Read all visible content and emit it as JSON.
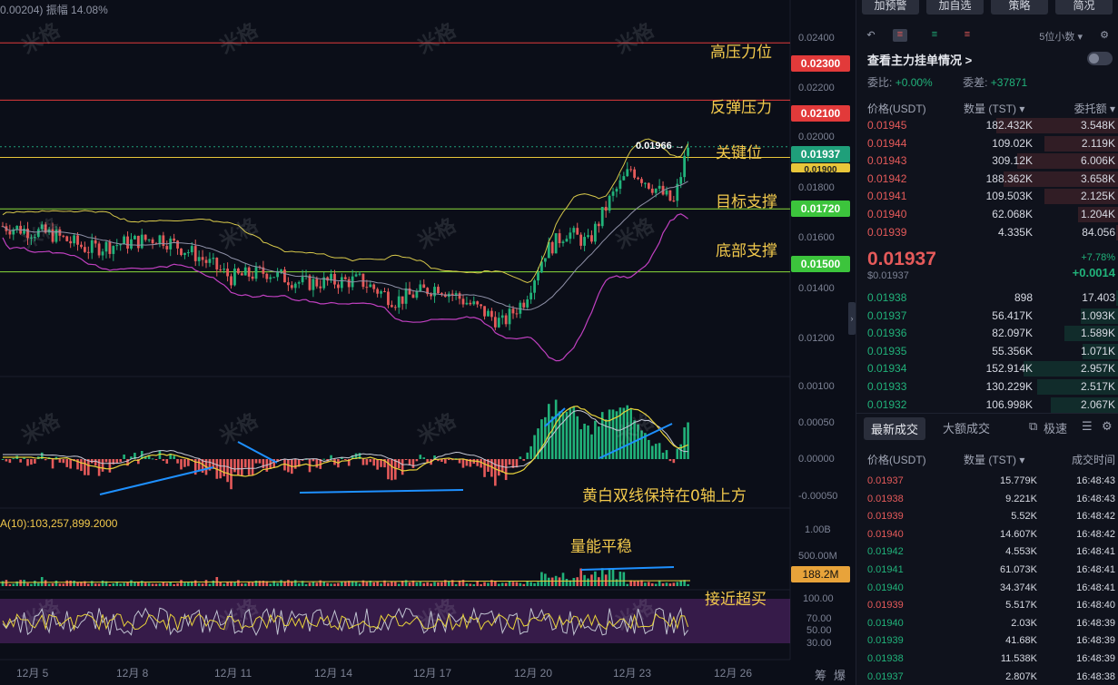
{
  "chart": {
    "top_info_price": "0.00204)",
    "top_info_amplitude": "振幅 14.08%",
    "annotations": {
      "high_pressure": "高压力位",
      "rebound_pressure": "反弹压力",
      "key_level": "关键位",
      "target_support": "目标支撑",
      "bottom_support": "底部支撑",
      "macd_note": "黄白双线保持在0轴上方",
      "volume_note": "量能平稳",
      "rsi_note": "接近超买"
    },
    "price_tags": {
      "p0230": "0.02300",
      "p0210": "0.02100",
      "p01937": "0.01937",
      "p01900": "0.01900",
      "p0172": "0.01720",
      "p0150": "0.01500"
    },
    "last_price_label": "0.01966 →",
    "price_axis": [
      "0.02400",
      "0.02200",
      "0.02000",
      "0.01800",
      "0.01600",
      "0.01400",
      "0.01200"
    ],
    "macd_axis": [
      "0.00100",
      "0.00050",
      "0.00000",
      "-0.00050"
    ],
    "volume_axis": [
      "1.00B",
      "500.00M"
    ],
    "volume_tag": "188.2M",
    "ma_label": "A(10):103,257,899.2000",
    "rsi_axis": [
      "100.00",
      "70.00",
      "50.00",
      "30.00"
    ],
    "dates": [
      "12月 5",
      "12月 8",
      "12月 11",
      "12月 14",
      "12月 17",
      "12月 20",
      "12月 23",
      "12月 26"
    ],
    "corner_labels": [
      "筹",
      "爆"
    ],
    "watermark": "米格",
    "colors": {
      "up": "#21b27a",
      "down": "#e55a5a",
      "annotation": "#f2c94c",
      "boll_mid": "#8f91a8",
      "boll_upper": "#d7c84a",
      "boll_lower": "#c040c0"
    }
  },
  "chart_data": {
    "type": "candlestick",
    "x_start": "12月 4",
    "x_end": "12月 24",
    "price_range": [
      0.0115,
      0.0245
    ],
    "resistance_levels": [
      0.023,
      0.021
    ],
    "key_level": 0.019,
    "support_levels": [
      0.0172,
      0.015
    ],
    "last_price": 0.01937,
    "recent_high": 0.01966
  },
  "orderbook": {
    "buttons": [
      "加预警",
      "加自选",
      "策略",
      "简况"
    ],
    "decimals": "5位小数",
    "depth_toggle": "查看主力挂单情况 >",
    "ratio_label": "委比:",
    "ratio_value": "+0.00%",
    "diff_label": "委差:",
    "diff_value": "+37871",
    "headers": [
      "价格(USDT)",
      "数量 (TST) ▾",
      "委托额 ▾"
    ],
    "asks": [
      {
        "p": "0.01945",
        "q": "182.432K",
        "t": "3.548K",
        "w": 0.9
      },
      {
        "p": "0.01944",
        "q": "109.02K",
        "t": "2.119K",
        "w": 0.55
      },
      {
        "p": "0.01943",
        "q": "309.12K",
        "t": "6.006K",
        "w": 0.75
      },
      {
        "p": "0.01942",
        "q": "188.362K",
        "t": "3.658K",
        "w": 0.85
      },
      {
        "p": "0.01941",
        "q": "109.503K",
        "t": "2.125K",
        "w": 0.55
      },
      {
        "p": "0.01940",
        "q": "62.068K",
        "t": "1.204K",
        "w": 0.3
      },
      {
        "p": "0.01939",
        "q": "4.335K",
        "t": "84.056",
        "w": 0.02
      }
    ],
    "last_price": "0.01937",
    "last_usd": "$0.01937",
    "last_pct": "+7.78%",
    "last_change": "+0.0014",
    "bids": [
      {
        "p": "0.01938",
        "q": "898",
        "t": "17.403",
        "w": 0.02
      },
      {
        "p": "0.01937",
        "q": "56.417K",
        "t": "1.093K",
        "w": 0.28
      },
      {
        "p": "0.01936",
        "q": "82.097K",
        "t": "1.589K",
        "w": 0.4
      },
      {
        "p": "0.01935",
        "q": "55.356K",
        "t": "1.071K",
        "w": 0.27
      },
      {
        "p": "0.01934",
        "q": "152.914K",
        "t": "2.957K",
        "w": 0.7
      },
      {
        "p": "0.01933",
        "q": "130.229K",
        "t": "2.517K",
        "w": 0.6
      },
      {
        "p": "0.01932",
        "q": "106.998K",
        "t": "2.067K",
        "w": 0.5
      }
    ],
    "trade_tabs": [
      "最新成交",
      "大额成交",
      "极速"
    ],
    "trade_headers": [
      "价格(USDT)",
      "数量 (TST) ▾",
      "成交时间"
    ],
    "trades": [
      {
        "p": "0.01937",
        "q": "15.779K",
        "t": "16:48:43",
        "side": "down"
      },
      {
        "p": "0.01938",
        "q": "9.221K",
        "t": "16:48:43",
        "side": "down"
      },
      {
        "p": "0.01939",
        "q": "5.52K",
        "t": "16:48:42",
        "side": "down"
      },
      {
        "p": "0.01940",
        "q": "14.607K",
        "t": "16:48:42",
        "side": "down"
      },
      {
        "p": "0.01942",
        "q": "4.553K",
        "t": "16:48:41",
        "side": "up"
      },
      {
        "p": "0.01941",
        "q": "61.073K",
        "t": "16:48:41",
        "side": "up"
      },
      {
        "p": "0.01940",
        "q": "34.374K",
        "t": "16:48:41",
        "side": "up"
      },
      {
        "p": "0.01939",
        "q": "5.517K",
        "t": "16:48:40",
        "side": "down"
      },
      {
        "p": "0.01940",
        "q": "2.03K",
        "t": "16:48:39",
        "side": "up"
      },
      {
        "p": "0.01939",
        "q": "41.68K",
        "t": "16:48:39",
        "side": "up"
      },
      {
        "p": "0.01938",
        "q": "11.538K",
        "t": "16:48:39",
        "side": "up"
      },
      {
        "p": "0.01937",
        "q": "2.807K",
        "t": "16:48:38",
        "side": "up"
      }
    ]
  }
}
